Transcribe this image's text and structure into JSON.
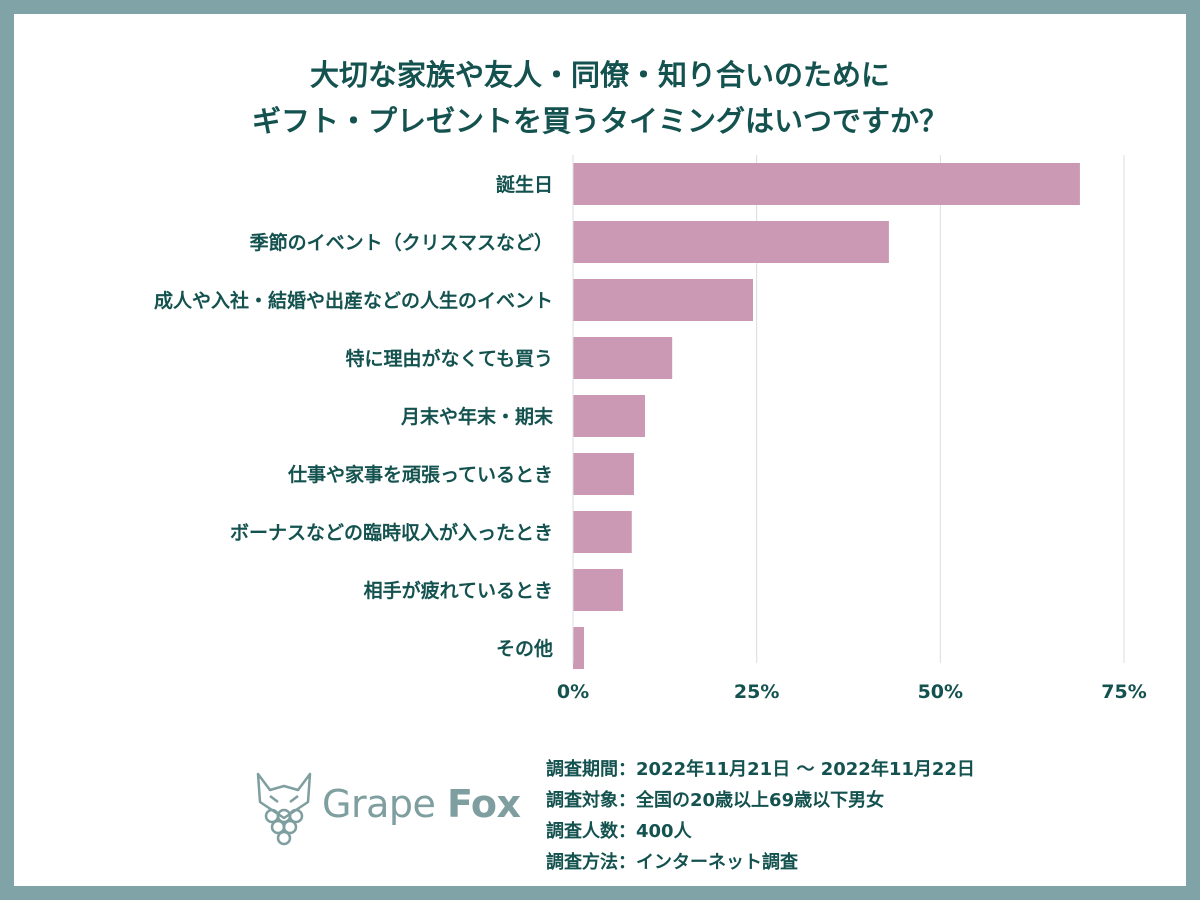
{
  "title": {
    "line1": "大切な家族や友人・同僚・知り合いのために",
    "line2": "ギフト・プレゼントを買うタイミングはいつですか？"
  },
  "colors": {
    "background_frame": "#7fa3a6",
    "bar": "#cc99b4",
    "text": "#14524f",
    "gridline": "#d9dde0",
    "logo": "#7e9e9f"
  },
  "chart_data": {
    "type": "bar",
    "orientation": "horizontal",
    "categories": [
      "誕生日",
      "季節のイベント（クリスマスなど）",
      "成人や入社・結婚や出産などの人生のイベント",
      "特に理由がなくても買う",
      "月末や年末・期末",
      "仕事や家事を頑張っているとき",
      "ボーナスなどの臨時収入が入ったとき",
      "相手が疲れているとき",
      "その他"
    ],
    "values": [
      69,
      43,
      24.5,
      13.5,
      9.8,
      8.3,
      8.0,
      6.8,
      1.5
    ],
    "xlim": [
      0,
      75
    ],
    "xticks": [
      0,
      25,
      50,
      75
    ],
    "xtick_labels": [
      "0%",
      "25%",
      "50%",
      "75%"
    ],
    "grid": true
  },
  "survey": {
    "period": "調査期間：2022年11月21日 〜 2022年11月22日",
    "target": "調査対象：全国の20歳以上69歳以下男女",
    "count": "調査人数：400人",
    "method": "調査方法：インターネット調査"
  },
  "logo": {
    "word1": "Grape",
    "word2": "Fox",
    "icon": "grape-fox-icon"
  }
}
